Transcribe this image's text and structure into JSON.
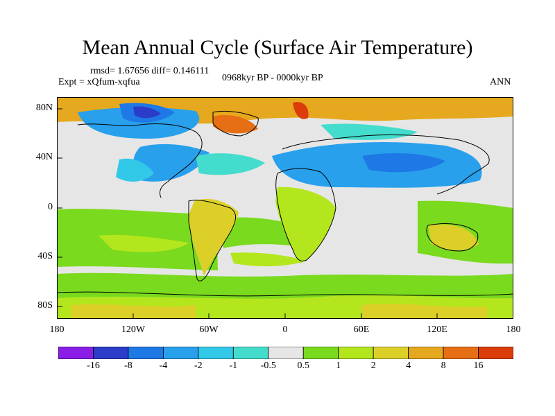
{
  "title": "Mean Annual Cycle (Surface Air Temperature)",
  "stats": "rmsd= 1.67656 diff= 0.146111",
  "experiment": "Expt = xQfum-xqfua",
  "period": "0968kyr BP - 0000kyr BP",
  "season": "ANN",
  "lat_labels": [
    "80N",
    "40N",
    "0",
    "40S",
    "80S"
  ],
  "lon_labels": [
    "180",
    "120W",
    "60W",
    "0",
    "60E",
    "120E",
    "180"
  ],
  "colorbar": {
    "labels": [
      "-16",
      "-8",
      "-4",
      "-2",
      "-1",
      "-0.5",
      "0.5",
      "1",
      "2",
      "4",
      "8",
      "16"
    ],
    "colors": [
      "#8a1ee6",
      "#2a3cc8",
      "#1e78e6",
      "#28a0ec",
      "#32c8e8",
      "#44dccc",
      "#e6e6e6",
      "#7ada1e",
      "#b4e61e",
      "#dcd028",
      "#e6a81e",
      "#e66e14",
      "#dc3c0a"
    ]
  }
}
